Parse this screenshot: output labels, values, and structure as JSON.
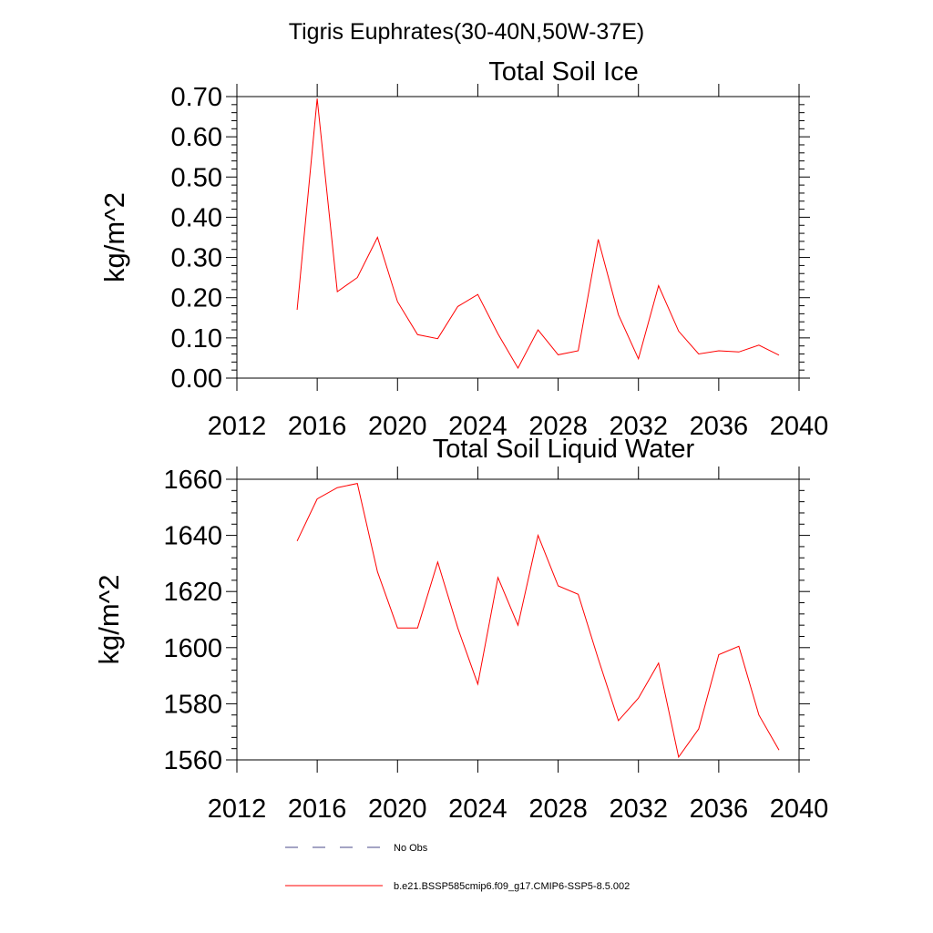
{
  "figure": {
    "suptitle": "Tigris Euphrates(30-40N,50W-37E)"
  },
  "chart_data": [
    {
      "type": "line",
      "title": "Total Soil Ice",
      "ylabel": "kg/m^2",
      "xlabel": "",
      "xlim": [
        2012,
        2040
      ],
      "ylim": [
        0.0,
        0.7
      ],
      "xticks": [
        2012,
        2016,
        2020,
        2024,
        2028,
        2032,
        2036,
        2040
      ],
      "xtick_labels": [
        "2012",
        "2016",
        "2020",
        "2024",
        "2028",
        "2032",
        "2036",
        "2040"
      ],
      "yticks": [
        0.0,
        0.1,
        0.2,
        0.3,
        0.4,
        0.5,
        0.6,
        0.7
      ],
      "ytick_labels": [
        "0.00",
        "0.10",
        "0.20",
        "0.30",
        "0.40",
        "0.50",
        "0.60",
        "0.70"
      ],
      "grid": false,
      "series": [
        {
          "name": "b.e21.BSSP585cmip6.f09_g17.CMIP6-SSP5-8.5.002",
          "color": "#ff0000",
          "x": [
            2015,
            2016,
            2017,
            2018,
            2019,
            2020,
            2021,
            2022,
            2023,
            2024,
            2025,
            2026,
            2027,
            2028,
            2029,
            2030,
            2031,
            2032,
            2033,
            2034,
            2035,
            2036,
            2037,
            2038,
            2039
          ],
          "y": [
            0.17,
            0.695,
            0.215,
            0.25,
            0.35,
            0.19,
            0.108,
            0.098,
            0.178,
            0.208,
            0.11,
            0.025,
            0.12,
            0.058,
            0.068,
            0.345,
            0.158,
            0.048,
            0.23,
            0.117,
            0.06,
            0.068,
            0.065,
            0.082,
            0.057
          ]
        }
      ]
    },
    {
      "type": "line",
      "title": "Total Soil Liquid Water",
      "ylabel": "kg/m^2",
      "xlabel": "",
      "xlim": [
        2012,
        2040
      ],
      "ylim": [
        1560,
        1660
      ],
      "xticks": [
        2012,
        2016,
        2020,
        2024,
        2028,
        2032,
        2036,
        2040
      ],
      "xtick_labels": [
        "2012",
        "2016",
        "2020",
        "2024",
        "2028",
        "2032",
        "2036",
        "2040"
      ],
      "yticks": [
        1560,
        1580,
        1600,
        1620,
        1640,
        1660
      ],
      "ytick_labels": [
        "1560",
        "1580",
        "1600",
        "1620",
        "1640",
        "1660"
      ],
      "grid": false,
      "series": [
        {
          "name": "b.e21.BSSP585cmip6.f09_g17.CMIP6-SSP5-8.5.002",
          "color": "#ff0000",
          "x": [
            2015,
            2016,
            2017,
            2018,
            2019,
            2020,
            2021,
            2022,
            2023,
            2024,
            2025,
            2026,
            2027,
            2028,
            2029,
            2030,
            2031,
            2032,
            2033,
            2034,
            2035,
            2036,
            2037,
            2038,
            2039
          ],
          "y": [
            1638,
            1653,
            1657,
            1658.5,
            1627,
            1607,
            1607,
            1630.5,
            1607,
            1587,
            1625,
            1608,
            1640,
            1622,
            1619,
            1596,
            1574,
            1582,
            1594.5,
            1561,
            1571,
            1597.5,
            1600.5,
            1576,
            1563.5
          ]
        }
      ]
    }
  ],
  "legend": {
    "placement": "bottom",
    "items": [
      {
        "label": "No Obs",
        "style": "dashed",
        "color": "#4a4a8a"
      },
      {
        "label": "b.e21.BSSP585cmip6.f09_g17.CMIP6-SSP5-8.5.002",
        "style": "solid",
        "color": "#ff0000"
      }
    ]
  }
}
